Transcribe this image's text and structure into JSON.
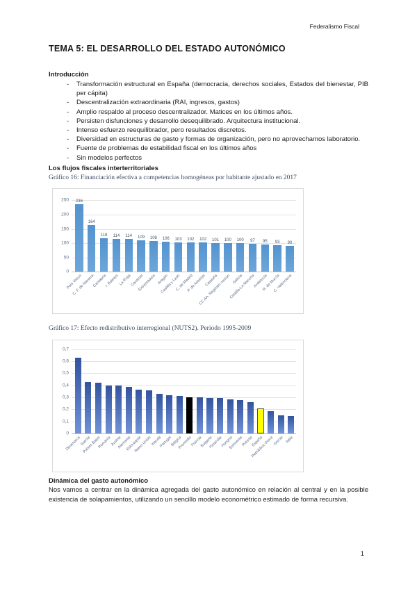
{
  "page": {
    "header": "Federalismo Fiscal",
    "page_number": "1"
  },
  "title": "TEMA 5: EL DESARROLLO DEL ESTADO AUTONÓMICO",
  "sections": {
    "intro_heading": "Introducción",
    "bullets": [
      "Transformación estructural en España (democracia, derechos sociales, Estados del bienestar, PIB per cápita)",
      "Descentralización extraordinaria (RAI, ingresos, gastos)",
      "Amplio respaldo al proceso descentralizador. Matices en los últimos años.",
      "Persisten disfunciones y desarrollo desequilibrado. Arquitectura institucional.",
      "Intenso esfuerzo reequilibrador, pero resultados discretos.",
      "Diversidad en estructuras de gasto y formas de organización, pero no aprovechamos laboratorio.",
      "Fuente de problemas de estabilidad fiscal en los últimos años",
      "Sin modelos perfectos"
    ],
    "flows_heading": "Los flujos fiscales interterritoriales",
    "dynamics_heading": "Dinámica del gasto autonómico",
    "dynamics_paragraph": "Nos vamos a centrar en la dinámica agregada del gasto autonómico en relación al central y en la posible existencia de solapamientos, utilizando un sencillo modelo econométrico estimado de forma recursiva."
  },
  "colors": {
    "chart1_bar_blue": "#5b9bd5",
    "chart2_bar_blue": "#4472c4",
    "highlight_black": "#000000",
    "highlight_yellow": "#ffff00"
  },
  "chart_data": [
    {
      "type": "bar",
      "title": "Gráfico 16: Financiación efectiva a competencias homogéneas por habitante ajustado en 2017",
      "categories": [
        "País Vasco",
        "C. F. de Navarra",
        "Cantabria",
        "I. Balears",
        "La Rioja",
        "Canarias",
        "Extremadura",
        "Aragón",
        "Castilla y León",
        "C. de Madrid",
        "P. de Asturias",
        "Cataluña",
        "CC.AA. Régimen común",
        "Galicia",
        "Castilla-La Mancha",
        "Andalucía",
        "R. de Murcia",
        "C. Valenciana"
      ],
      "values": [
        236,
        164,
        118,
        114,
        114,
        109,
        108,
        106,
        103,
        102,
        102,
        101,
        100,
        100,
        97,
        95,
        93,
        90
      ],
      "xlabel": "",
      "ylabel": "",
      "ylim": [
        0,
        250
      ],
      "yticks": [
        "250",
        "200",
        "150",
        "100",
        "50",
        "0"
      ],
      "grid": true,
      "legend": "none",
      "bar_color": "#5b9bd5",
      "show_value_labels": true
    },
    {
      "type": "bar",
      "title": "Gráfico 17: Efecto redistributivo interregional (NUTS2). Periodo 1995-2009",
      "categories": [
        "Dinamarca",
        "Suecia",
        "Países Bajos",
        "Rumanía",
        "Austria",
        "Alemania",
        "Eslovaquia",
        "Reino Unido",
        "Irlanda",
        "Portugal",
        "Bélgica",
        "Promedio",
        "Francia",
        "Bulgaria",
        "Finlandia",
        "Hungría",
        "Eslovenia",
        "Polonia",
        "España",
        "República checa",
        "Grecia",
        "Italia"
      ],
      "values": [
        0.63,
        0.43,
        0.42,
        0.4,
        0.4,
        0.385,
        0.365,
        0.355,
        0.33,
        0.32,
        0.31,
        0.3,
        0.3,
        0.295,
        0.295,
        0.285,
        0.275,
        0.26,
        0.205,
        0.185,
        0.15,
        0.145
      ],
      "xlabel": "",
      "ylabel": "",
      "ylim": [
        0,
        0.7
      ],
      "yticks": [
        "0,7",
        "0,6",
        "0,5",
        "0,4",
        "0,3",
        "0,2",
        "0,1",
        "0"
      ],
      "grid": true,
      "legend": "none",
      "bar_color": "#4472c4",
      "show_value_labels": false,
      "special_bars": [
        {
          "index": 11,
          "color": "#000000",
          "label": "Promedio"
        },
        {
          "index": 18,
          "color": "#ffff00",
          "border": "#5a5a2a",
          "label": "España"
        }
      ]
    }
  ]
}
